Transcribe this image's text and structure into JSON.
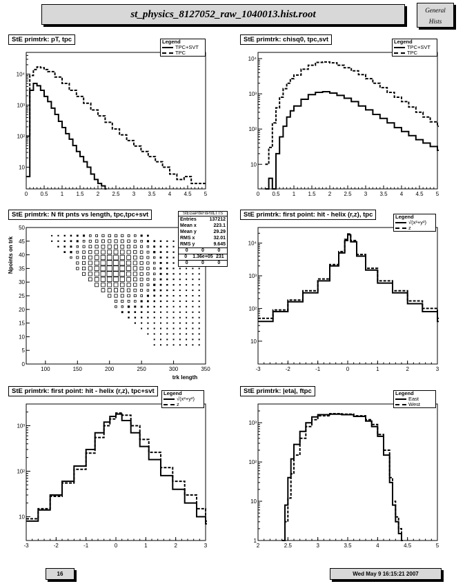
{
  "header": {
    "title": "st_physics_8127052_raw_1040013.hist.root",
    "badge_line1": "General",
    "badge_line2": "Hists"
  },
  "footer": {
    "page": "16",
    "date": "Wed May  9 16:15:21 2007"
  },
  "chart_data": [
    {
      "type": "line",
      "title": "StE primtrk: pT, tpc",
      "log_y": true,
      "xlim": [
        0,
        5
      ],
      "ylim": [
        2,
        50000
      ],
      "xticks": [
        "0",
        "0.5",
        "1",
        "1.5",
        "2",
        "2.5",
        "3",
        "3.5",
        "4",
        "4.5",
        "5"
      ],
      "yticks": [
        {
          "v": 10,
          "l": "10"
        },
        {
          "v": 100,
          "l": "10²"
        },
        {
          "v": 1000,
          "l": "10³"
        },
        {
          "v": 10000,
          "l": "10⁴"
        }
      ],
      "legend": {
        "title": "Legend",
        "entries": [
          "TPC+SVT",
          "TPC"
        ]
      },
      "series": [
        {
          "name": "TPC+SVT",
          "style": "solid",
          "x": [
            0,
            0.1,
            0.2,
            0.3,
            0.4,
            0.5,
            0.6,
            0.7,
            0.8,
            0.9,
            1.0,
            1.1,
            1.2,
            1.3,
            1.4,
            1.5,
            1.6,
            1.7,
            1.8,
            1.9,
            2.0,
            2.1,
            2.2
          ],
          "y": [
            5,
            3000,
            5000,
            4200,
            3000,
            1900,
            1300,
            800,
            500,
            300,
            190,
            120,
            80,
            50,
            32,
            22,
            15,
            10,
            6,
            4,
            3,
            2.5,
            2
          ]
        },
        {
          "name": "TPC",
          "style": "dash",
          "x": [
            0,
            0.1,
            0.2,
            0.3,
            0.4,
            0.5,
            0.6,
            0.8,
            1.0,
            1.2,
            1.4,
            1.6,
            1.8,
            2.0,
            2.2,
            2.4,
            2.6,
            2.8,
            3.0,
            3.2,
            3.4,
            3.6,
            3.8,
            4.0,
            4.2,
            4.4,
            4.6,
            4.8,
            5.0
          ],
          "y": [
            100,
            9000,
            14000,
            17000,
            16000,
            14000,
            12000,
            8000,
            5000,
            3000,
            1900,
            1150,
            700,
            450,
            280,
            170,
            110,
            72,
            48,
            32,
            22,
            15,
            10,
            6,
            4,
            5,
            3,
            3,
            3
          ]
        }
      ]
    },
    {
      "type": "line",
      "title": "StE primtrk: chisq0, tpc,svt",
      "log_y": true,
      "xlim": [
        0,
        5
      ],
      "ylim": [
        2,
        15000
      ],
      "xticks": [
        "0",
        "0.5",
        "1",
        "1.5",
        "2",
        "2.5",
        "3",
        "3.5",
        "4",
        "4.5",
        "5"
      ],
      "yticks": [
        {
          "v": 10,
          "l": "10"
        },
        {
          "v": 100,
          "l": "10²"
        },
        {
          "v": 1000,
          "l": "10³"
        },
        {
          "v": 10000,
          "l": "10⁴"
        }
      ],
      "legend": {
        "title": "Legend",
        "entries": [
          "TPC+SVT",
          "TPC"
        ]
      },
      "series": [
        {
          "name": "TPC+SVT",
          "style": "solid",
          "x": [
            0.2,
            0.3,
            0.4,
            0.5,
            0.6,
            0.7,
            0.8,
            0.9,
            1.0,
            1.2,
            1.4,
            1.6,
            1.8,
            2.0,
            2.2,
            2.4,
            2.6,
            2.8,
            3.0,
            3.2,
            3.4,
            3.6,
            3.8,
            4.0,
            4.2,
            4.4,
            4.6,
            4.8,
            5.0
          ],
          "y": [
            2,
            4,
            2,
            20,
            60,
            120,
            220,
            330,
            450,
            700,
            950,
            1100,
            1150,
            1050,
            900,
            750,
            600,
            450,
            350,
            260,
            200,
            150,
            110,
            85,
            65,
            50,
            40,
            32,
            25
          ]
        },
        {
          "name": "TPC",
          "style": "dash",
          "x": [
            0.2,
            0.3,
            0.4,
            0.5,
            0.6,
            0.7,
            0.8,
            0.9,
            1.0,
            1.2,
            1.4,
            1.6,
            1.8,
            2.0,
            2.2,
            2.4,
            2.6,
            2.8,
            3.0,
            3.2,
            3.4,
            3.6,
            3.8,
            4.0,
            4.2,
            4.4,
            4.6,
            4.8,
            5.0
          ],
          "y": [
            10,
            30,
            150,
            400,
            800,
            1400,
            2000,
            2700,
            3400,
            5000,
            6500,
            7800,
            8000,
            7600,
            6500,
            5500,
            4500,
            3500,
            2700,
            2000,
            1500,
            1100,
            800,
            600,
            420,
            300,
            220,
            160,
            120
          ]
        }
      ]
    },
    {
      "type": "scatter",
      "title": "StE primtrk: N fit pnts vs length, tpc,tpc+svt",
      "xlabel": "trk length",
      "ylabel": "Npoints on trk",
      "xlim": [
        70,
        350
      ],
      "ylim": [
        0,
        50
      ],
      "xticks": [
        "100",
        "150",
        "200",
        "250",
        "300",
        "350"
      ],
      "yticks": [
        "0",
        "5",
        "10",
        "15",
        "20",
        "25",
        "30",
        "35",
        "40",
        "45",
        "50"
      ],
      "peak": {
        "x": 205,
        "y": 35
      },
      "stats": {
        "name": "StEGaPrtkFitPntLTTS",
        "rows": [
          [
            "Entries",
            "137212"
          ],
          [
            "Mean x",
            "223.1"
          ],
          [
            "Mean y",
            "29.29"
          ],
          [
            "RMS x",
            "32.01"
          ],
          [
            "RMS y",
            "9.645"
          ]
        ],
        "quad": [
          [
            "0",
            "0",
            "0"
          ],
          [
            "0",
            "1.36e+05",
            "231"
          ],
          [
            "0",
            "0",
            "0"
          ]
        ]
      }
    },
    {
      "type": "line",
      "title": "StE primtrk: first point: hit - helix (r,z), tpc",
      "log_y": true,
      "xlim": [
        -3,
        3
      ],
      "ylim": [
        2,
        30000
      ],
      "xticks": [
        "-3",
        "-2",
        "-1",
        "0",
        "1",
        "2",
        "3"
      ],
      "yticks": [
        {
          "v": 10,
          "l": "10"
        },
        {
          "v": 100,
          "l": "10²"
        },
        {
          "v": 1000,
          "l": "10³"
        },
        {
          "v": 10000,
          "l": "10⁴"
        }
      ],
      "legend": {
        "title": "Legend",
        "entries": [
          "√(x²+y²)",
          "z"
        ]
      },
      "series": [
        {
          "name": "√(x²+y²)",
          "style": "solid",
          "x": [
            -3,
            -2.5,
            -2,
            -1.5,
            -1,
            -0.6,
            -0.3,
            -0.1,
            0,
            0.1,
            0.3,
            0.6,
            1,
            1.5,
            2,
            2.5,
            3
          ],
          "y": [
            40,
            80,
            160,
            300,
            700,
            2000,
            5000,
            12000,
            18000,
            11000,
            4000,
            1500,
            600,
            300,
            140,
            80,
            40
          ]
        },
        {
          "name": "z",
          "style": "dash",
          "x": [
            -3,
            -2.5,
            -2,
            -1.5,
            -1,
            -0.6,
            -0.3,
            -0.1,
            0,
            0.1,
            0.3,
            0.6,
            1,
            1.5,
            2,
            2.5,
            3
          ],
          "y": [
            50,
            90,
            180,
            350,
            800,
            2200,
            5500,
            13000,
            19000,
            12000,
            4500,
            1700,
            700,
            350,
            170,
            100,
            50
          ]
        }
      ]
    },
    {
      "type": "line",
      "title": "StE primtrk: first point: hit - helix (r,z), tpc+svt",
      "log_y": true,
      "xlim": [
        -3,
        3
      ],
      "ylim": [
        3,
        3000
      ],
      "xticks": [
        "-3",
        "-2",
        "-1",
        "0",
        "1",
        "2",
        "3"
      ],
      "yticks": [
        {
          "v": 10,
          "l": "10"
        },
        {
          "v": 100,
          "l": "10²"
        },
        {
          "v": 1000,
          "l": "10³"
        }
      ],
      "legend": {
        "title": "Legend",
        "entries": [
          "√(x²+y²)",
          "z"
        ]
      },
      "series": [
        {
          "name": "√(x²+y²)",
          "style": "solid",
          "x": [
            -3,
            -2.6,
            -2.2,
            -1.8,
            -1.4,
            -1,
            -0.7,
            -0.4,
            -0.2,
            0,
            0.2,
            0.5,
            0.8,
            1.1,
            1.5,
            1.9,
            2.3,
            2.7,
            3
          ],
          "y": [
            8,
            14,
            30,
            60,
            130,
            300,
            700,
            1200,
            1600,
            1800,
            1300,
            700,
            350,
            180,
            80,
            40,
            20,
            10,
            7
          ]
        },
        {
          "name": "z",
          "style": "dash",
          "x": [
            -3,
            -2.6,
            -2.2,
            -1.8,
            -1.4,
            -1,
            -0.7,
            -0.4,
            -0.2,
            0,
            0.2,
            0.5,
            0.8,
            1.1,
            1.5,
            1.9,
            2.3,
            2.7,
            3
          ],
          "y": [
            9,
            15,
            28,
            55,
            110,
            250,
            550,
            1000,
            1400,
            1900,
            1700,
            1000,
            500,
            260,
            120,
            60,
            30,
            15,
            8
          ]
        }
      ]
    },
    {
      "type": "line",
      "title": "StE primtrk: |eta|, ftpc",
      "log_y": true,
      "xlim": [
        2,
        5
      ],
      "ylim": [
        1,
        3000
      ],
      "xticks": [
        "2",
        "2.5",
        "3",
        "3.5",
        "4",
        "4.5",
        "5"
      ],
      "yticks": [
        {
          "v": 1,
          "l": "1"
        },
        {
          "v": 10,
          "l": "10"
        },
        {
          "v": 100,
          "l": "10²"
        },
        {
          "v": 1000,
          "l": "10³"
        }
      ],
      "legend": {
        "title": "Legend",
        "entries": [
          "East",
          "West"
        ]
      },
      "series": [
        {
          "name": "East",
          "style": "solid",
          "x": [
            2.4,
            2.45,
            2.5,
            2.55,
            2.6,
            2.7,
            2.8,
            2.9,
            3.0,
            3.2,
            3.4,
            3.6,
            3.8,
            3.9,
            4.0,
            4.1,
            4.2,
            4.25,
            4.3,
            4.35,
            4.4
          ],
          "y": [
            1,
            8,
            40,
            120,
            280,
            600,
            1000,
            1400,
            1600,
            1650,
            1600,
            1450,
            1100,
            800,
            450,
            150,
            30,
            8,
            3,
            1.5,
            1
          ]
        },
        {
          "name": "West",
          "style": "dash",
          "x": [
            2.4,
            2.45,
            2.5,
            2.55,
            2.6,
            2.7,
            2.8,
            2.9,
            3.0,
            3.2,
            3.4,
            3.6,
            3.8,
            3.9,
            4.0,
            4.1,
            4.2,
            4.25,
            4.3,
            4.35,
            4.4
          ],
          "y": [
            1,
            3,
            12,
            50,
            150,
            400,
            800,
            1200,
            1500,
            1700,
            1650,
            1500,
            1200,
            900,
            500,
            200,
            40,
            10,
            4,
            2,
            1
          ]
        }
      ]
    }
  ]
}
